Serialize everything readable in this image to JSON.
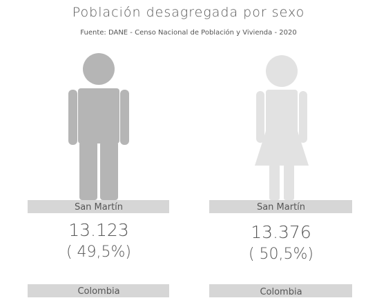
{
  "header": {
    "title": "Población desagregada por sexo",
    "source": "Fuente: DANE - Censo Nacional de Población y Vivienda - 2020"
  },
  "panels": [
    {
      "region": "San Martín",
      "count": "13.123",
      "percent": "( 49,5%)",
      "footer": "Colombia"
    },
    {
      "region": "San Martín",
      "count": "13.376",
      "percent": "( 50,5%)",
      "footer": "Colombia"
    }
  ]
}
